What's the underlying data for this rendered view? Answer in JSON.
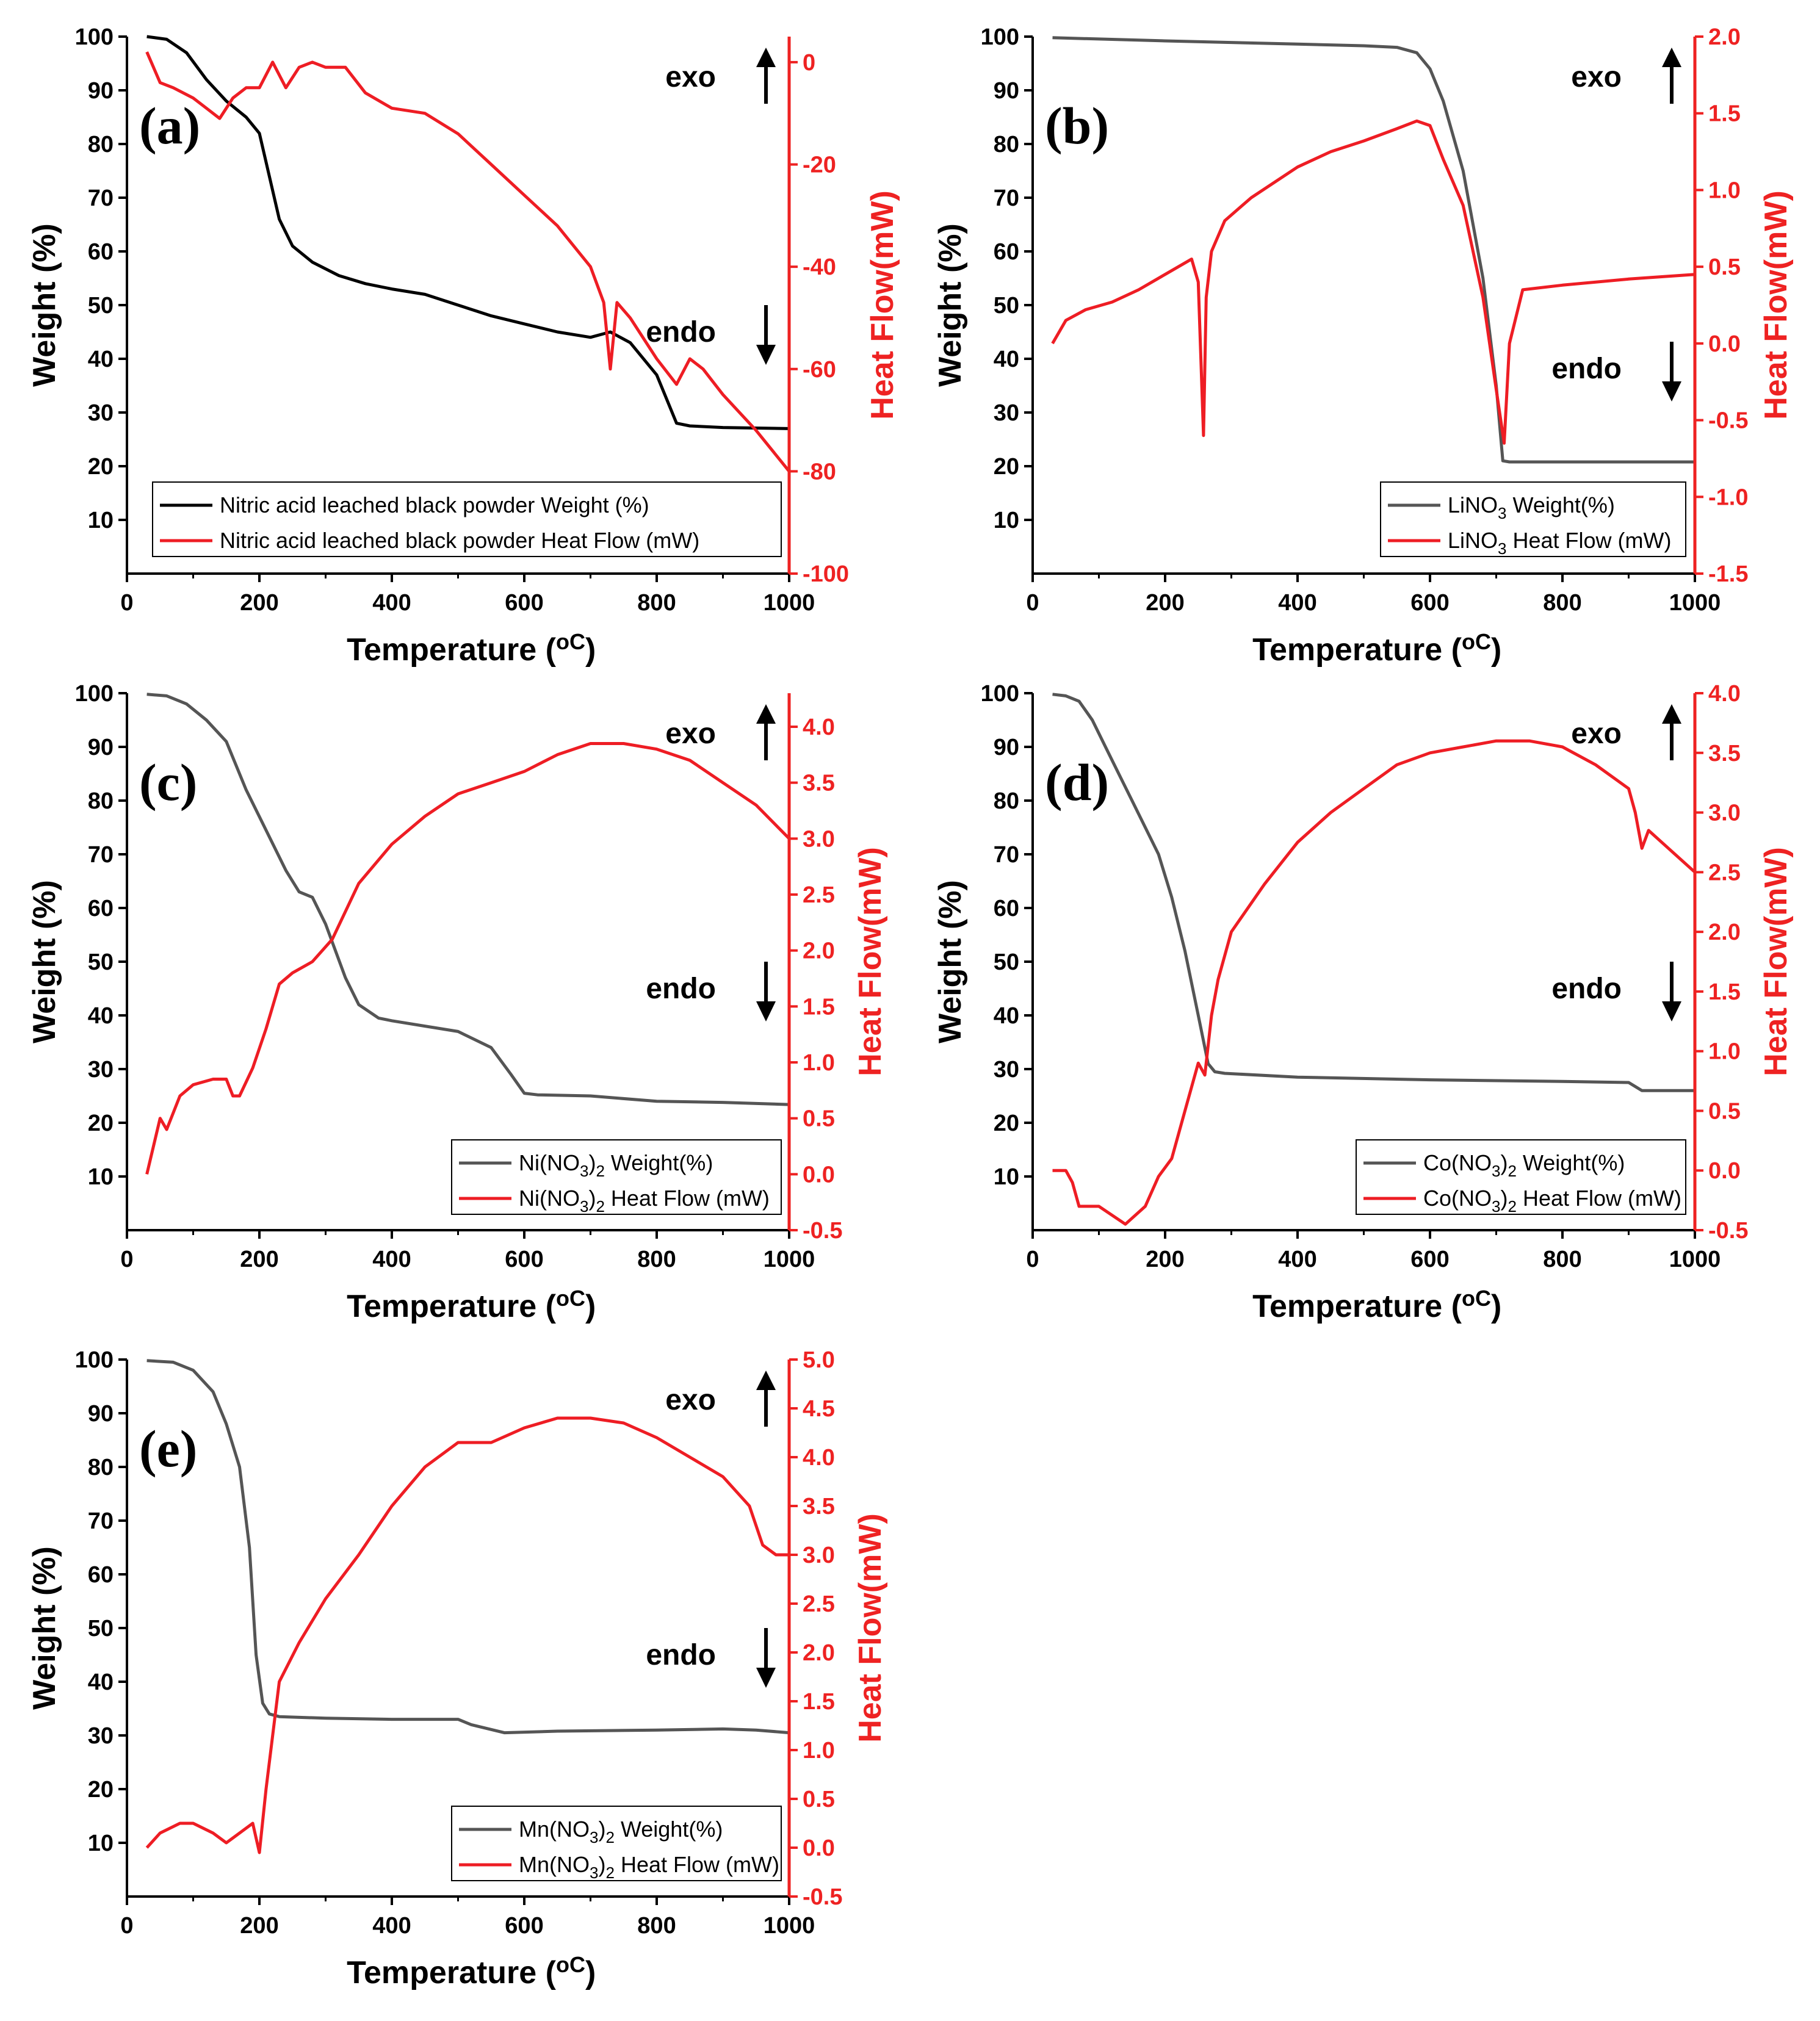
{
  "colors": {
    "weight": "#000000",
    "heat": "#ee1d24",
    "axis_left": "#000000",
    "axis_right": "#ee2222"
  },
  "chart_data": [
    {
      "type": "line",
      "panel_label": "(a)",
      "xlabel": "Temperature (",
      "xlabel_unit": "oC",
      "xlabel_end": ")",
      "ylabel": "Weight (%)",
      "y2label": "Heat Flow(mW)",
      "xlim": [
        0,
        1000
      ],
      "ylim": [
        0,
        100
      ],
      "y2lim": [
        -100,
        5
      ],
      "x_ticks": [
        "0",
        "200",
        "400",
        "600",
        "800",
        "1000"
      ],
      "y_ticks": [
        "10",
        "20",
        "30",
        "40",
        "50",
        "60",
        "70",
        "80",
        "90",
        "100"
      ],
      "y2_ticks": [
        "-100",
        "-80",
        "-60",
        "-40",
        "-20",
        "0"
      ],
      "y2_tick_values": [
        -100,
        -80,
        -60,
        -40,
        -20,
        0
      ],
      "annotations": {
        "exo": "exo",
        "endo": "endo"
      },
      "legend": [
        {
          "name": "Nitric acid leached black powder Weight (%)"
        },
        {
          "name": "Nitric acid leached black powder Heat Flow (mW)"
        }
      ],
      "series": [
        {
          "name": "weight",
          "axis": "left",
          "color": "#000000",
          "x": [
            30,
            60,
            90,
            120,
            150,
            180,
            200,
            215,
            230,
            250,
            280,
            320,
            360,
            400,
            450,
            500,
            550,
            600,
            650,
            700,
            730,
            760,
            800,
            830,
            850,
            900,
            1000
          ],
          "y": [
            100,
            99.5,
            97,
            92,
            88,
            85,
            82,
            74,
            66,
            61,
            58,
            55.5,
            54,
            53,
            52,
            50,
            48,
            46.5,
            45,
            44,
            45,
            43,
            37,
            28,
            27.5,
            27.2,
            27
          ]
        },
        {
          "name": "heat",
          "axis": "right",
          "color": "#ee1d24",
          "x": [
            30,
            50,
            70,
            100,
            120,
            140,
            160,
            180,
            200,
            220,
            240,
            260,
            280,
            300,
            330,
            360,
            400,
            450,
            500,
            550,
            600,
            650,
            700,
            720,
            730,
            740,
            760,
            800,
            830,
            850,
            870,
            900,
            950,
            1000
          ],
          "y": [
            2,
            -4,
            -5,
            -7,
            -9,
            -11,
            -7,
            -5,
            -5,
            0,
            -5,
            -1,
            0,
            -1,
            -1,
            -6,
            -9,
            -10,
            -14,
            -20,
            -26,
            -32,
            -40,
            -47,
            -60,
            -47,
            -50,
            -58,
            -63,
            -58,
            -60,
            -65,
            -72,
            -80
          ]
        }
      ]
    },
    {
      "type": "line",
      "panel_label": "(b)",
      "xlabel": "Temperature (",
      "xlabel_unit": "oC",
      "xlabel_end": ")",
      "ylabel": "Weight (%)",
      "y2label": "Heat Flow(mW)",
      "xlim": [
        0,
        1000
      ],
      "ylim": [
        0,
        100
      ],
      "y2lim": [
        -1.5,
        2.0
      ],
      "x_ticks": [
        "0",
        "200",
        "400",
        "600",
        "800",
        "1000"
      ],
      "y_ticks": [
        "10",
        "20",
        "30",
        "40",
        "50",
        "60",
        "70",
        "80",
        "90",
        "100"
      ],
      "y2_ticks": [
        "-1.5",
        "-1.0",
        "-0.5",
        "0.0",
        "0.5",
        "1.0",
        "1.5",
        "2.0"
      ],
      "y2_tick_values": [
        -1.5,
        -1.0,
        -0.5,
        0.0,
        0.5,
        1.0,
        1.5,
        2.0
      ],
      "annotations": {
        "exo": "exo",
        "endo": "endo"
      },
      "legend": [
        {
          "name": "LiNO",
          "sub": "3",
          "suffix": " Weight(%)"
        },
        {
          "name": "LiNO",
          "sub": "3",
          "suffix": " Heat Flow (mW)"
        }
      ],
      "series": [
        {
          "name": "weight",
          "axis": "left",
          "color": "#555555",
          "x": [
            30,
            200,
            400,
            500,
            550,
            580,
            600,
            620,
            650,
            680,
            700,
            710,
            720,
            1000
          ],
          "y": [
            99.8,
            99.2,
            98.6,
            98.3,
            98,
            97,
            94,
            88,
            75,
            55,
            35,
            21,
            20.8,
            20.8
          ]
        },
        {
          "name": "heat",
          "axis": "right",
          "color": "#ee1d24",
          "x": [
            30,
            50,
            80,
            120,
            160,
            200,
            240,
            250,
            258,
            262,
            270,
            290,
            330,
            400,
            450,
            500,
            550,
            580,
            600,
            620,
            650,
            680,
            700,
            712,
            720,
            740,
            800,
            900,
            1000
          ],
          "y": [
            0,
            0.15,
            0.22,
            0.27,
            0.35,
            0.45,
            0.55,
            0.4,
            -0.6,
            0.3,
            0.6,
            0.8,
            0.95,
            1.15,
            1.25,
            1.32,
            1.4,
            1.45,
            1.42,
            1.2,
            0.9,
            0.3,
            -0.3,
            -0.65,
            0.0,
            0.35,
            0.38,
            0.42,
            0.45
          ]
        }
      ]
    },
    {
      "type": "line",
      "panel_label": "(c)",
      "xlabel": "Temperature (",
      "xlabel_unit": "oC",
      "xlabel_end": ")",
      "ylabel": "Weight (%)",
      "y2label": "Heat Flow(mW)",
      "xlim": [
        0,
        1000
      ],
      "ylim": [
        0,
        100
      ],
      "y2lim": [
        -0.5,
        4.3
      ],
      "x_ticks": [
        "0",
        "200",
        "400",
        "600",
        "800",
        "1000"
      ],
      "y_ticks": [
        "10",
        "20",
        "30",
        "40",
        "50",
        "60",
        "70",
        "80",
        "90",
        "100"
      ],
      "y2_ticks": [
        "-0.5",
        "0.0",
        "0.5",
        "1.0",
        "1.5",
        "2.0",
        "2.5",
        "3.0",
        "3.5",
        "4.0"
      ],
      "y2_tick_values": [
        -0.5,
        0.0,
        0.5,
        1.0,
        1.5,
        2.0,
        2.5,
        3.0,
        3.5,
        4.0
      ],
      "annotations": {
        "exo": "exo",
        "endo": "endo"
      },
      "legend": [
        {
          "name": "Ni(NO",
          "sub": "3",
          "suffix": ")",
          "sub2": "2",
          "suffix2": " Weight(%)"
        },
        {
          "name": "Ni(NO",
          "sub": "3",
          "suffix": ")",
          "sub2": "2",
          "suffix2": " Heat Flow (mW)"
        }
      ],
      "series": [
        {
          "name": "weight",
          "axis": "left",
          "color": "#555555",
          "x": [
            30,
            60,
            90,
            120,
            150,
            180,
            200,
            220,
            240,
            260,
            280,
            300,
            330,
            350,
            380,
            400,
            450,
            500,
            550,
            580,
            600,
            620,
            700,
            800,
            900,
            1000
          ],
          "y": [
            99.8,
            99.5,
            98,
            95,
            91,
            82,
            77,
            72,
            67,
            63,
            62,
            57,
            47,
            42,
            39.5,
            39,
            38,
            37,
            34,
            29,
            25.5,
            25.2,
            25,
            24,
            23.8,
            23.4
          ]
        },
        {
          "name": "heat",
          "axis": "right",
          "color": "#ee1d24",
          "x": [
            30,
            50,
            60,
            80,
            100,
            130,
            150,
            160,
            170,
            190,
            210,
            230,
            250,
            280,
            310,
            350,
            400,
            450,
            500,
            550,
            600,
            650,
            700,
            750,
            800,
            850,
            900,
            950,
            1000
          ],
          "y": [
            0,
            0.5,
            0.4,
            0.7,
            0.8,
            0.85,
            0.85,
            0.7,
            0.7,
            0.95,
            1.3,
            1.7,
            1.8,
            1.9,
            2.1,
            2.6,
            2.95,
            3.2,
            3.4,
            3.5,
            3.6,
            3.75,
            3.85,
            3.85,
            3.8,
            3.7,
            3.5,
            3.3,
            3.0
          ]
        }
      ]
    },
    {
      "type": "line",
      "panel_label": "(d)",
      "xlabel": "Temperature (",
      "xlabel_unit": "oC",
      "xlabel_end": ")",
      "ylabel": "Weight (%)",
      "y2label": "Heat Flow(mW)",
      "xlim": [
        0,
        1000
      ],
      "ylim": [
        0,
        100
      ],
      "y2lim": [
        -0.5,
        4.0
      ],
      "x_ticks": [
        "0",
        "200",
        "400",
        "600",
        "800",
        "1000"
      ],
      "y_ticks": [
        "10",
        "20",
        "30",
        "40",
        "50",
        "60",
        "70",
        "80",
        "90",
        "100"
      ],
      "y2_ticks": [
        "-0.5",
        "0.0",
        "0.5",
        "1.0",
        "1.5",
        "2.0",
        "2.5",
        "3.0",
        "3.5",
        "4.0"
      ],
      "y2_tick_values": [
        -0.5,
        0.0,
        0.5,
        1.0,
        1.5,
        2.0,
        2.5,
        3.0,
        3.5,
        4.0
      ],
      "annotations": {
        "exo": "exo",
        "endo": "endo"
      },
      "legend": [
        {
          "name": "Co(NO",
          "sub": "3",
          "suffix": ")",
          "sub2": "2",
          "suffix2": " Weight(%)"
        },
        {
          "name": "Co(NO",
          "sub": "3",
          "suffix": ")",
          "sub2": "2",
          "suffix2": " Heat Flow (mW)"
        }
      ],
      "series": [
        {
          "name": "weight",
          "axis": "left",
          "color": "#555555",
          "x": [
            30,
            50,
            70,
            90,
            110,
            130,
            150,
            170,
            190,
            210,
            230,
            250,
            265,
            275,
            290,
            400,
            600,
            800,
            900,
            920,
            1000
          ],
          "y": [
            99.8,
            99.5,
            98.5,
            95,
            90,
            85,
            80,
            75,
            70,
            62,
            52,
            40,
            31,
            29.5,
            29.2,
            28.5,
            28,
            27.7,
            27.5,
            26,
            26
          ]
        },
        {
          "name": "heat",
          "axis": "right",
          "color": "#ee1d24",
          "x": [
            30,
            50,
            60,
            70,
            80,
            100,
            140,
            170,
            190,
            210,
            230,
            250,
            260,
            270,
            280,
            300,
            350,
            400,
            450,
            500,
            550,
            600,
            650,
            700,
            750,
            800,
            850,
            900,
            910,
            920,
            930,
            960,
            1000
          ],
          "y": [
            0,
            0,
            -0.1,
            -0.3,
            -0.3,
            -0.3,
            -0.45,
            -0.3,
            -0.05,
            0.1,
            0.5,
            0.9,
            0.8,
            1.3,
            1.6,
            2.0,
            2.4,
            2.75,
            3.0,
            3.2,
            3.4,
            3.5,
            3.55,
            3.6,
            3.6,
            3.55,
            3.4,
            3.2,
            3.0,
            2.7,
            2.85,
            2.7,
            2.5
          ]
        }
      ]
    },
    {
      "type": "line",
      "panel_label": "(e)",
      "xlabel": "Temperature (",
      "xlabel_unit": "oC",
      "xlabel_end": ")",
      "ylabel": "Weight (%)",
      "y2label": "Heat Flow(mW)",
      "xlim": [
        0,
        1000
      ],
      "ylim": [
        0,
        100
      ],
      "y2lim": [
        -0.5,
        5.0
      ],
      "x_ticks": [
        "0",
        "200",
        "400",
        "600",
        "800",
        "1000"
      ],
      "y_ticks": [
        "10",
        "20",
        "30",
        "40",
        "50",
        "60",
        "70",
        "80",
        "90",
        "100"
      ],
      "y2_ticks": [
        "-0.5",
        "0.0",
        "0.5",
        "1.0",
        "1.5",
        "2.0",
        "2.5",
        "3.0",
        "3.5",
        "4.0",
        "4.5",
        "5.0"
      ],
      "y2_tick_values": [
        -0.5,
        0.0,
        0.5,
        1.0,
        1.5,
        2.0,
        2.5,
        3.0,
        3.5,
        4.0,
        4.5,
        5.0
      ],
      "annotations": {
        "exo": "exo",
        "endo": "endo"
      },
      "legend": [
        {
          "name": "Mn(NO",
          "sub": "3",
          "suffix": ")",
          "sub2": "2",
          "suffix2": " Weight(%)"
        },
        {
          "name": "Mn(NO",
          "sub": "3",
          "suffix": ")",
          "sub2": "2",
          "suffix2": " Heat Flow (mW)"
        }
      ],
      "series": [
        {
          "name": "weight",
          "axis": "left",
          "color": "#555555",
          "x": [
            30,
            70,
            100,
            130,
            150,
            170,
            185,
            195,
            205,
            215,
            230,
            300,
            400,
            500,
            520,
            570,
            650,
            800,
            900,
            950,
            1000
          ],
          "y": [
            99.8,
            99.5,
            98,
            94,
            88,
            80,
            65,
            45,
            36,
            34,
            33.5,
            33.2,
            33,
            33,
            32,
            30.5,
            30.8,
            31,
            31.2,
            31,
            30.5
          ]
        },
        {
          "name": "heat",
          "axis": "right",
          "color": "#ee1d24",
          "x": [
            30,
            50,
            80,
            100,
            130,
            150,
            170,
            190,
            200,
            210,
            230,
            260,
            300,
            350,
            400,
            450,
            500,
            550,
            600,
            650,
            700,
            750,
            800,
            850,
            900,
            940,
            960,
            980,
            1000
          ],
          "y": [
            0,
            0.15,
            0.25,
            0.25,
            0.15,
            0.05,
            0.15,
            0.25,
            -0.05,
            0.6,
            1.7,
            2.1,
            2.55,
            3.0,
            3.5,
            3.9,
            4.15,
            4.15,
            4.3,
            4.4,
            4.4,
            4.35,
            4.2,
            4.0,
            3.8,
            3.5,
            3.1,
            3.0,
            3.0
          ]
        }
      ]
    }
  ]
}
